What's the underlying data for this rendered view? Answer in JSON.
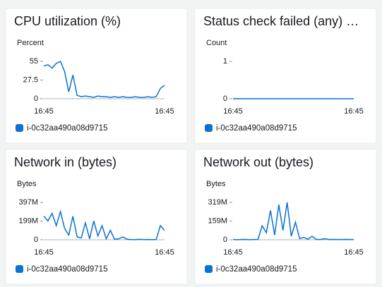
{
  "chart_data": [
    {
      "type": "line",
      "title": "CPU utilization (%)",
      "y_label": "Percent",
      "categories": [
        "16:45",
        null,
        null,
        null,
        null,
        null,
        null,
        null,
        null,
        null,
        null,
        null,
        null,
        null,
        null,
        null,
        null,
        null,
        null,
        null,
        null,
        null,
        null,
        null,
        null,
        null,
        null,
        null,
        null,
        "16:45"
      ],
      "series": [
        {
          "name": "i-0c32aa490a08d9715",
          "color": "#0972d3",
          "values": [
            48,
            50,
            45,
            52,
            55,
            40,
            10,
            35,
            5,
            3,
            4,
            3,
            2,
            4,
            3,
            3,
            2,
            3,
            2,
            3,
            2,
            2,
            3,
            2,
            2,
            3,
            2,
            3,
            15,
            20
          ]
        }
      ],
      "ylim": [
        0,
        55
      ],
      "yticks": [
        0,
        27.5,
        55
      ]
    },
    {
      "type": "line",
      "title": "Status check failed (any) …",
      "y_label": "Count",
      "categories": [
        "16:45",
        null,
        null,
        null,
        null,
        null,
        null,
        null,
        null,
        null,
        null,
        null,
        null,
        null,
        null,
        null,
        null,
        null,
        null,
        null,
        null,
        null,
        null,
        null,
        null,
        null,
        null,
        null,
        null,
        "16:45"
      ],
      "series": [
        {
          "name": "i-0c32aa490a08d9715",
          "color": "#0972d3",
          "values": [
            0,
            0,
            0,
            0,
            0,
            0,
            0,
            0,
            0,
            0,
            0,
            0,
            0,
            0,
            0,
            0,
            0,
            0,
            0,
            0,
            0,
            0,
            0,
            0,
            0,
            0,
            0,
            0,
            0,
            0
          ]
        }
      ],
      "ylim": [
        0,
        1
      ],
      "yticks": [
        0,
        1
      ]
    },
    {
      "type": "line",
      "title": "Network in (bytes)",
      "y_label": "Bytes",
      "categories": [
        "16:45",
        null,
        null,
        null,
        null,
        null,
        null,
        null,
        null,
        null,
        null,
        null,
        null,
        null,
        null,
        null,
        null,
        null,
        null,
        null,
        null,
        null,
        null,
        null,
        null,
        null,
        null,
        null,
        null,
        "16:45"
      ],
      "series": [
        {
          "name": "i-0c32aa490a08d9715",
          "color": "#0972d3",
          "values": [
            250000000,
            200000000,
            280000000,
            150000000,
            300000000,
            120000000,
            50000000,
            250000000,
            30000000,
            20000000,
            180000000,
            10000000,
            200000000,
            40000000,
            150000000,
            10000000,
            100000000,
            5000000,
            10000000,
            30000000,
            5000000,
            3000000,
            2000000,
            5000000,
            2000000,
            3000000,
            2000000,
            3000000,
            150000000,
            100000000
          ]
        }
      ],
      "ylim": [
        0,
        397000000
      ],
      "yticks": [
        0,
        {
          "value": 199000000,
          "label": "199M"
        },
        {
          "value": 397000000,
          "label": "397M"
        }
      ]
    },
    {
      "type": "line",
      "title": "Network out (bytes)",
      "y_label": "Bytes",
      "categories": [
        "16:45",
        null,
        null,
        null,
        null,
        null,
        null,
        null,
        null,
        null,
        null,
        null,
        null,
        null,
        null,
        null,
        null,
        null,
        null,
        null,
        null,
        null,
        null,
        null,
        null,
        null,
        null,
        null,
        null,
        "16:45"
      ],
      "series": [
        {
          "name": "i-0c32aa490a08d9715",
          "color": "#0972d3",
          "values": [
            2000000,
            1000000,
            2000000,
            3000000,
            1000000,
            2000000,
            3000000,
            120000000,
            60000000,
            250000000,
            40000000,
            300000000,
            80000000,
            319000000,
            30000000,
            150000000,
            10000000,
            20000000,
            5000000,
            30000000,
            3000000,
            2000000,
            10000000,
            2000000,
            3000000,
            2000000,
            2000000,
            3000000,
            2000000,
            2000000
          ]
        }
      ],
      "ylim": [
        0,
        319000000
      ],
      "yticks": [
        0,
        {
          "value": 159000000,
          "label": "159M"
        },
        {
          "value": 319000000,
          "label": "319M"
        }
      ]
    }
  ]
}
